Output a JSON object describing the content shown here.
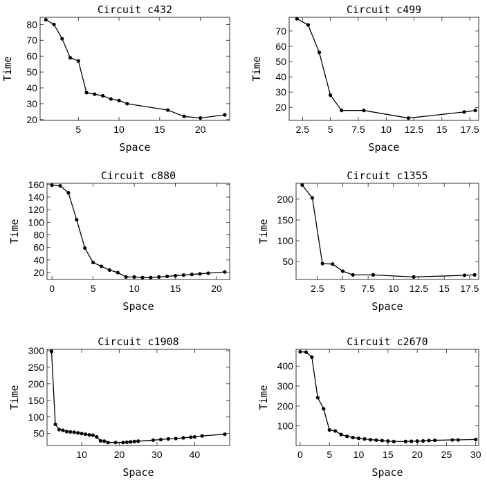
{
  "chart_data": [
    {
      "type": "line",
      "title": "Circuit c432",
      "xlabel": "Space",
      "ylabel": "Time",
      "xlim": [
        0.3,
        23.6
      ],
      "ylim": [
        19.5,
        84.5
      ],
      "xticks": [
        {
          "v": 5,
          "t": "5"
        },
        {
          "v": 10,
          "t": "10"
        },
        {
          "v": 15,
          "t": "15"
        },
        {
          "v": 20,
          "t": "20"
        }
      ],
      "yticks": [
        {
          "v": 20,
          "t": "20"
        },
        {
          "v": 30,
          "t": "30"
        },
        {
          "v": 40,
          "t": "40"
        },
        {
          "v": 50,
          "t": "50"
        },
        {
          "v": 60,
          "t": "60"
        },
        {
          "v": 70,
          "t": "70"
        },
        {
          "v": 80,
          "t": "80"
        }
      ],
      "x": [
        1,
        2,
        3,
        4,
        5,
        6,
        7,
        8,
        9,
        10,
        11,
        16,
        18,
        20,
        23
      ],
      "y": [
        83,
        80,
        71,
        59,
        57,
        37,
        36,
        35,
        33,
        32,
        30,
        26,
        22,
        21,
        23
      ]
    },
    {
      "type": "line",
      "title": "Circuit c499",
      "xlabel": "Space",
      "ylabel": "Time",
      "xlim": [
        1.3,
        18.3
      ],
      "ylim": [
        11.5,
        79
      ],
      "xticks": [
        {
          "v": 2.5,
          "t": "2.5"
        },
        {
          "v": 5,
          "t": "5"
        },
        {
          "v": 7.5,
          "t": "7.5"
        },
        {
          "v": 10,
          "t": "10"
        },
        {
          "v": 12.5,
          "t": "12.5"
        },
        {
          "v": 15,
          "t": "15"
        },
        {
          "v": 17.5,
          "t": "17.5"
        }
      ],
      "yticks": [
        {
          "v": 20,
          "t": "20"
        },
        {
          "v": 30,
          "t": "30"
        },
        {
          "v": 40,
          "t": "40"
        },
        {
          "v": 50,
          "t": "50"
        },
        {
          "v": 60,
          "t": "60"
        },
        {
          "v": 70,
          "t": "70"
        }
      ],
      "x": [
        2,
        3,
        4,
        5,
        6,
        8,
        12,
        17,
        18
      ],
      "y": [
        78,
        74,
        56,
        28,
        18,
        18,
        13,
        17,
        18
      ]
    },
    {
      "type": "line",
      "title": "Circuit c880",
      "xlabel": "Space",
      "ylabel": "Time",
      "xlim": [
        -0.6,
        21.6
      ],
      "ylim": [
        9,
        162
      ],
      "xticks": [
        {
          "v": 0,
          "t": "0"
        },
        {
          "v": 5,
          "t": "5"
        },
        {
          "v": 10,
          "t": "10"
        },
        {
          "v": 15,
          "t": "15"
        },
        {
          "v": 20,
          "t": "20"
        }
      ],
      "yticks": [
        {
          "v": 20,
          "t": "20"
        },
        {
          "v": 40,
          "t": "40"
        },
        {
          "v": 60,
          "t": "60"
        },
        {
          "v": 80,
          "t": "80"
        },
        {
          "v": 100,
          "t": "100"
        },
        {
          "v": 120,
          "t": "120"
        },
        {
          "v": 140,
          "t": "140"
        },
        {
          "v": 160,
          "t": "160"
        }
      ],
      "x": [
        0,
        1,
        2,
        3,
        4,
        5,
        6,
        7,
        8,
        9,
        10,
        11,
        12,
        13,
        14,
        15,
        16,
        17,
        18,
        19,
        21
      ],
      "y": [
        159,
        158,
        147,
        104,
        59,
        36,
        30,
        24,
        20,
        13,
        13,
        12,
        12,
        13,
        14,
        15,
        16,
        17,
        18,
        19,
        21
      ]
    },
    {
      "type": "line",
      "title": "Circuit c1355",
      "xlabel": "Space",
      "ylabel": "Time",
      "xlim": [
        0.4,
        18.4
      ],
      "ylim": [
        7,
        238
      ],
      "xticks": [
        {
          "v": 2.5,
          "t": "2.5"
        },
        {
          "v": 5,
          "t": "5"
        },
        {
          "v": 7.5,
          "t": "7.5"
        },
        {
          "v": 10,
          "t": "10"
        },
        {
          "v": 12.5,
          "t": "12.5"
        },
        {
          "v": 15,
          "t": "15"
        },
        {
          "v": 17.5,
          "t": "17.5"
        }
      ],
      "yticks": [
        {
          "v": 50,
          "t": "50"
        },
        {
          "v": 100,
          "t": "100"
        },
        {
          "v": 150,
          "t": "150"
        },
        {
          "v": 200,
          "t": "200"
        }
      ],
      "x": [
        1,
        2,
        3,
        4,
        5,
        6,
        8,
        12,
        17,
        18
      ],
      "y": [
        234,
        203,
        45,
        44,
        27,
        18,
        18,
        13,
        17,
        18
      ]
    },
    {
      "type": "line",
      "title": "Circuit c1908",
      "xlabel": "Space",
      "ylabel": "Time",
      "xlim": [
        0.8,
        49.3
      ],
      "ylim": [
        14,
        304
      ],
      "xticks": [
        {
          "v": 10,
          "t": "10"
        },
        {
          "v": 20,
          "t": "20"
        },
        {
          "v": 30,
          "t": "30"
        },
        {
          "v": 40,
          "t": "40"
        }
      ],
      "yticks": [
        {
          "v": 50,
          "t": "50"
        },
        {
          "v": 100,
          "t": "100"
        },
        {
          "v": 150,
          "t": "150"
        },
        {
          "v": 200,
          "t": "200"
        },
        {
          "v": 250,
          "t": "250"
        },
        {
          "v": 300,
          "t": "300"
        }
      ],
      "x": [
        2,
        3,
        4,
        5,
        6,
        7,
        8,
        9,
        10,
        11,
        12,
        13,
        14,
        15,
        16,
        17,
        19,
        21,
        22,
        23,
        24,
        25,
        29,
        31,
        33,
        35,
        37,
        39,
        40,
        42,
        48
      ],
      "y": [
        298,
        78,
        62,
        60,
        56,
        55,
        54,
        52,
        50,
        48,
        46,
        45,
        40,
        28,
        27,
        23,
        23,
        23,
        24,
        25,
        26,
        27,
        30,
        32,
        34,
        35,
        37,
        39,
        40,
        43,
        48
      ]
    },
    {
      "type": "line",
      "title": "Circuit c2670",
      "xlabel": "Space",
      "ylabel": "Time",
      "xlim": [
        -0.7,
        30.5
      ],
      "ylim": [
        2,
        484
      ],
      "xticks": [
        {
          "v": 0,
          "t": "0"
        },
        {
          "v": 5,
          "t": "5"
        },
        {
          "v": 10,
          "t": "10"
        },
        {
          "v": 15,
          "t": "15"
        },
        {
          "v": 20,
          "t": "20"
        },
        {
          "v": 25,
          "t": "25"
        },
        {
          "v": 30,
          "t": "30"
        }
      ],
      "yticks": [
        {
          "v": 100,
          "t": "100"
        },
        {
          "v": 200,
          "t": "200"
        },
        {
          "v": 300,
          "t": "300"
        },
        {
          "v": 400,
          "t": "400"
        }
      ],
      "x": [
        0,
        1,
        2,
        3,
        4,
        5,
        6,
        7,
        8,
        9,
        10,
        11,
        12,
        13,
        14,
        15,
        16,
        18,
        19,
        20,
        21,
        22,
        23,
        26,
        27,
        30
      ],
      "y": [
        472,
        470,
        445,
        242,
        186,
        80,
        75,
        57,
        48,
        42,
        38,
        35,
        31,
        29,
        27,
        24,
        22,
        22,
        23,
        24,
        25,
        27,
        28,
        30,
        30,
        32
      ]
    }
  ]
}
